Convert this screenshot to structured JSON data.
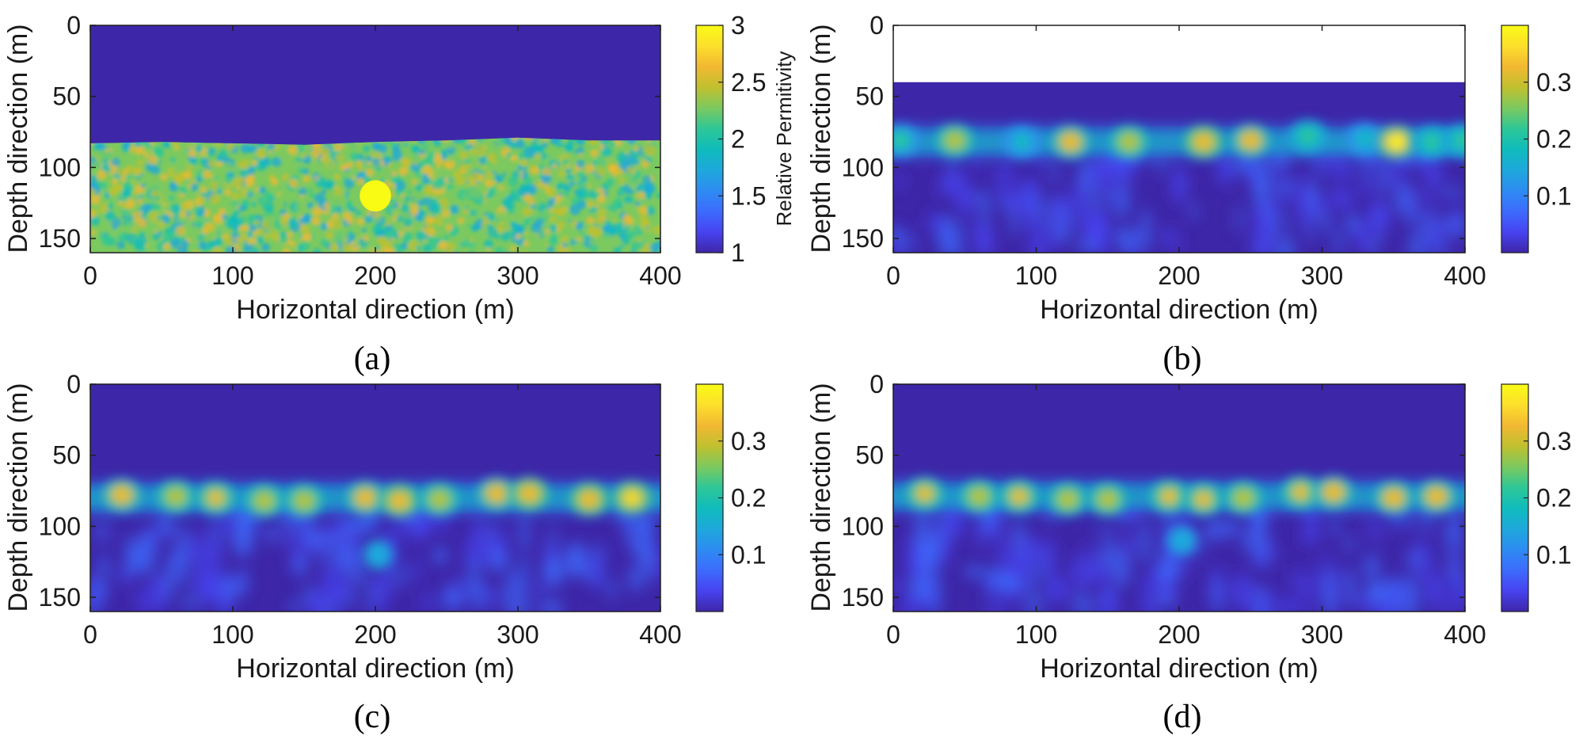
{
  "colormap": [
    "#3e26a8",
    "#4743f0",
    "#3d6bfd",
    "#2d8cf2",
    "#1ea8dc",
    "#0fbcbc",
    "#2ec797",
    "#7cc95f",
    "#c0c02f",
    "#f2b832",
    "#fcdf2c",
    "#f9fb15"
  ],
  "chart_data": [
    {
      "id": "a",
      "panel_label": "(a)",
      "type": "heatmap",
      "field": "permittivity",
      "xlabel": "Horizontal direction (m)",
      "ylabel": "Depth direction (m)",
      "xlim": [
        0,
        400
      ],
      "ylim": [
        0,
        160
      ],
      "y_reversed": true,
      "xticks": [
        "0",
        "100",
        "200",
        "300",
        "400"
      ],
      "yticks": [
        "0",
        "50",
        "100",
        "150"
      ],
      "colorbar": {
        "min": 1,
        "max": 3,
        "ticks": [
          "1",
          "1.5",
          "2",
          "2.5",
          "3"
        ],
        "label": "Relative Permitivity"
      },
      "layers": {
        "air_value": 1,
        "soil_mean": 2.2,
        "surface_depth": [
          [
            0,
            83
          ],
          [
            50,
            82
          ],
          [
            100,
            83
          ],
          [
            150,
            84
          ],
          [
            200,
            82
          ],
          [
            250,
            81
          ],
          [
            300,
            79
          ],
          [
            350,
            81
          ],
          [
            400,
            81
          ]
        ]
      },
      "anomalies": [
        {
          "shape": "circle",
          "x": 200,
          "y": 120,
          "radius": 11,
          "value": 3
        }
      ]
    },
    {
      "id": "b",
      "panel_label": "(b)",
      "type": "heatmap",
      "field": "reconstruction",
      "xlabel": "Horizontal direction (m)",
      "ylabel": "Depth direction (m)",
      "xlim": [
        0,
        400
      ],
      "ylim": [
        0,
        160
      ],
      "y_reversed": true,
      "xticks": [
        "0",
        "100",
        "200",
        "300",
        "400"
      ],
      "yticks": [
        "0",
        "50",
        "100",
        "150"
      ],
      "colorbar": {
        "min": 0,
        "max": 0.4,
        "ticks": [
          "0.1",
          "0.2",
          "0.3"
        ]
      },
      "blank_above_depth": 40,
      "band_depth": 82,
      "hotspots": [
        {
          "x": 5,
          "y": 81,
          "value": 0.2
        },
        {
          "x": 43,
          "y": 81,
          "value": 0.29
        },
        {
          "x": 90,
          "y": 82,
          "value": 0.18
        },
        {
          "x": 124,
          "y": 82,
          "value": 0.33
        },
        {
          "x": 165,
          "y": 82,
          "value": 0.28
        },
        {
          "x": 217,
          "y": 82,
          "value": 0.34
        },
        {
          "x": 250,
          "y": 81,
          "value": 0.33
        },
        {
          "x": 290,
          "y": 78,
          "value": 0.22
        },
        {
          "x": 330,
          "y": 80,
          "value": 0.17
        },
        {
          "x": 352,
          "y": 82,
          "value": 0.39
        },
        {
          "x": 377,
          "y": 82,
          "value": 0.22
        },
        {
          "x": 398,
          "y": 81,
          "value": 0.22
        }
      ],
      "anomaly": null
    },
    {
      "id": "c",
      "panel_label": "(c)",
      "type": "heatmap",
      "field": "reconstruction",
      "xlabel": "Horizontal direction (m)",
      "ylabel": "Depth direction (m)",
      "xlim": [
        0,
        400
      ],
      "ylim": [
        0,
        160
      ],
      "y_reversed": true,
      "xticks": [
        "0",
        "100",
        "200",
        "300",
        "400"
      ],
      "yticks": [
        "0",
        "50",
        "100",
        "150"
      ],
      "colorbar": {
        "min": 0,
        "max": 0.4,
        "ticks": [
          "0.1",
          "0.2",
          "0.3"
        ]
      },
      "blank_above_depth": 0,
      "band_depth": 80,
      "hotspots": [
        {
          "x": 22,
          "y": 78,
          "value": 0.33
        },
        {
          "x": 60,
          "y": 79,
          "value": 0.3
        },
        {
          "x": 88,
          "y": 80,
          "value": 0.32
        },
        {
          "x": 122,
          "y": 82,
          "value": 0.29
        },
        {
          "x": 150,
          "y": 82,
          "value": 0.3
        },
        {
          "x": 193,
          "y": 80,
          "value": 0.33
        },
        {
          "x": 217,
          "y": 82,
          "value": 0.34
        },
        {
          "x": 245,
          "y": 81,
          "value": 0.3
        },
        {
          "x": 285,
          "y": 77,
          "value": 0.33
        },
        {
          "x": 308,
          "y": 77,
          "value": 0.34
        },
        {
          "x": 350,
          "y": 81,
          "value": 0.34
        },
        {
          "x": 380,
          "y": 80,
          "value": 0.35
        }
      ],
      "anomaly": {
        "x": 202,
        "y": 120,
        "value": 0.16
      }
    },
    {
      "id": "d",
      "panel_label": "(d)",
      "type": "heatmap",
      "field": "reconstruction",
      "xlabel": "Horizontal direction (m)",
      "ylabel": "Depth direction (m)",
      "xlim": [
        0,
        400
      ],
      "ylim": [
        0,
        160
      ],
      "y_reversed": true,
      "xticks": [
        "0",
        "100",
        "200",
        "300",
        "400"
      ],
      "yticks": [
        "0",
        "50",
        "100",
        "150"
      ],
      "colorbar": {
        "min": 0,
        "max": 0.4,
        "ticks": [
          "0.1",
          "0.2",
          "0.3"
        ]
      },
      "blank_above_depth": 0,
      "band_depth": 79,
      "hotspots": [
        {
          "x": 22,
          "y": 77,
          "value": 0.32
        },
        {
          "x": 60,
          "y": 79,
          "value": 0.3
        },
        {
          "x": 88,
          "y": 79,
          "value": 0.31
        },
        {
          "x": 122,
          "y": 81,
          "value": 0.28
        },
        {
          "x": 150,
          "y": 81,
          "value": 0.29
        },
        {
          "x": 193,
          "y": 79,
          "value": 0.32
        },
        {
          "x": 217,
          "y": 81,
          "value": 0.32
        },
        {
          "x": 245,
          "y": 80,
          "value": 0.3
        },
        {
          "x": 285,
          "y": 76,
          "value": 0.32
        },
        {
          "x": 308,
          "y": 76,
          "value": 0.33
        },
        {
          "x": 350,
          "y": 80,
          "value": 0.33
        },
        {
          "x": 380,
          "y": 79,
          "value": 0.33
        }
      ],
      "anomaly": {
        "x": 202,
        "y": 110,
        "value": 0.13
      }
    }
  ]
}
